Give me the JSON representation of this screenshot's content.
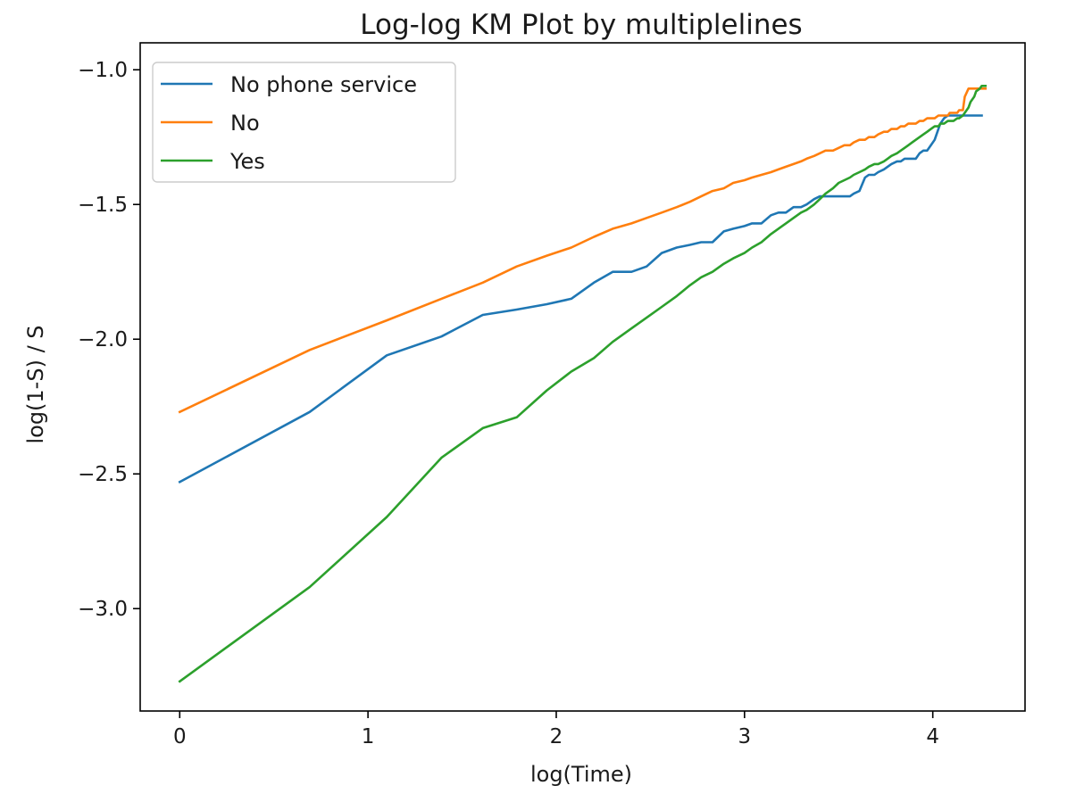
{
  "chart_data": {
    "type": "line",
    "title": "Log-log KM Plot by multiplelines",
    "xlabel": "log(Time)",
    "ylabel": "log(1-S) / S",
    "xlim": [
      -0.21,
      4.49
    ],
    "ylim": [
      -3.38,
      -0.9
    ],
    "x_ticks": [
      0,
      1,
      2,
      3,
      4
    ],
    "x_tick_labels": [
      "0",
      "1",
      "2",
      "3",
      "4"
    ],
    "y_ticks": [
      -1.0,
      -1.5,
      -2.0,
      -2.5,
      -3.0
    ],
    "y_tick_labels": [
      "−1.0",
      "−1.5",
      "−2.0",
      "−2.5",
      "−3.0"
    ],
    "grid": false,
    "legend_position": "top-left",
    "series": [
      {
        "name": "No phone service",
        "color": "#1f77b4",
        "points": [
          [
            0.0,
            -2.53
          ],
          [
            0.69,
            -2.27
          ],
          [
            1.1,
            -2.06
          ],
          [
            1.39,
            -1.99
          ],
          [
            1.61,
            -1.91
          ],
          [
            1.79,
            -1.89
          ],
          [
            1.95,
            -1.87
          ],
          [
            2.08,
            -1.85
          ],
          [
            2.2,
            -1.79
          ],
          [
            2.3,
            -1.75
          ],
          [
            2.4,
            -1.75
          ],
          [
            2.48,
            -1.73
          ],
          [
            2.56,
            -1.68
          ],
          [
            2.64,
            -1.66
          ],
          [
            2.71,
            -1.65
          ],
          [
            2.77,
            -1.64
          ],
          [
            2.83,
            -1.64
          ],
          [
            2.89,
            -1.6
          ],
          [
            2.94,
            -1.59
          ],
          [
            3.0,
            -1.58
          ],
          [
            3.04,
            -1.57
          ],
          [
            3.09,
            -1.57
          ],
          [
            3.14,
            -1.54
          ],
          [
            3.18,
            -1.53
          ],
          [
            3.22,
            -1.53
          ],
          [
            3.26,
            -1.51
          ],
          [
            3.3,
            -1.51
          ],
          [
            3.33,
            -1.5
          ],
          [
            3.37,
            -1.48
          ],
          [
            3.4,
            -1.47
          ],
          [
            3.43,
            -1.47
          ],
          [
            3.47,
            -1.47
          ],
          [
            3.5,
            -1.47
          ],
          [
            3.53,
            -1.47
          ],
          [
            3.56,
            -1.47
          ],
          [
            3.58,
            -1.46
          ],
          [
            3.61,
            -1.45
          ],
          [
            3.64,
            -1.4
          ],
          [
            3.66,
            -1.39
          ],
          [
            3.69,
            -1.39
          ],
          [
            3.71,
            -1.38
          ],
          [
            3.74,
            -1.37
          ],
          [
            3.76,
            -1.36
          ],
          [
            3.78,
            -1.35
          ],
          [
            3.81,
            -1.34
          ],
          [
            3.83,
            -1.34
          ],
          [
            3.85,
            -1.33
          ],
          [
            3.87,
            -1.33
          ],
          [
            3.89,
            -1.33
          ],
          [
            3.91,
            -1.33
          ],
          [
            3.93,
            -1.31
          ],
          [
            3.95,
            -1.3
          ],
          [
            3.97,
            -1.3
          ],
          [
            3.99,
            -1.28
          ],
          [
            4.01,
            -1.26
          ],
          [
            4.03,
            -1.22
          ],
          [
            4.04,
            -1.2
          ],
          [
            4.06,
            -1.18
          ],
          [
            4.08,
            -1.17
          ],
          [
            4.09,
            -1.17
          ],
          [
            4.11,
            -1.17
          ],
          [
            4.13,
            -1.17
          ],
          [
            4.14,
            -1.17
          ],
          [
            4.16,
            -1.17
          ],
          [
            4.17,
            -1.17
          ],
          [
            4.19,
            -1.17
          ],
          [
            4.2,
            -1.17
          ],
          [
            4.22,
            -1.17
          ],
          [
            4.23,
            -1.17
          ],
          [
            4.25,
            -1.17
          ],
          [
            4.26,
            -1.17
          ]
        ]
      },
      {
        "name": "No",
        "color": "#ff7f0e",
        "points": [
          [
            0.0,
            -2.27
          ],
          [
            0.69,
            -2.04
          ],
          [
            1.1,
            -1.93
          ],
          [
            1.39,
            -1.85
          ],
          [
            1.61,
            -1.79
          ],
          [
            1.79,
            -1.73
          ],
          [
            1.95,
            -1.69
          ],
          [
            2.08,
            -1.66
          ],
          [
            2.2,
            -1.62
          ],
          [
            2.3,
            -1.59
          ],
          [
            2.4,
            -1.57
          ],
          [
            2.48,
            -1.55
          ],
          [
            2.56,
            -1.53
          ],
          [
            2.64,
            -1.51
          ],
          [
            2.71,
            -1.49
          ],
          [
            2.77,
            -1.47
          ],
          [
            2.83,
            -1.45
          ],
          [
            2.89,
            -1.44
          ],
          [
            2.94,
            -1.42
          ],
          [
            3.0,
            -1.41
          ],
          [
            3.04,
            -1.4
          ],
          [
            3.09,
            -1.39
          ],
          [
            3.14,
            -1.38
          ],
          [
            3.18,
            -1.37
          ],
          [
            3.22,
            -1.36
          ],
          [
            3.26,
            -1.35
          ],
          [
            3.3,
            -1.34
          ],
          [
            3.33,
            -1.33
          ],
          [
            3.37,
            -1.32
          ],
          [
            3.4,
            -1.31
          ],
          [
            3.43,
            -1.3
          ],
          [
            3.47,
            -1.3
          ],
          [
            3.5,
            -1.29
          ],
          [
            3.53,
            -1.28
          ],
          [
            3.56,
            -1.28
          ],
          [
            3.58,
            -1.27
          ],
          [
            3.61,
            -1.26
          ],
          [
            3.64,
            -1.26
          ],
          [
            3.66,
            -1.25
          ],
          [
            3.69,
            -1.25
          ],
          [
            3.71,
            -1.24
          ],
          [
            3.74,
            -1.23
          ],
          [
            3.76,
            -1.23
          ],
          [
            3.78,
            -1.22
          ],
          [
            3.81,
            -1.22
          ],
          [
            3.83,
            -1.21
          ],
          [
            3.85,
            -1.21
          ],
          [
            3.87,
            -1.2
          ],
          [
            3.89,
            -1.2
          ],
          [
            3.91,
            -1.2
          ],
          [
            3.93,
            -1.19
          ],
          [
            3.95,
            -1.19
          ],
          [
            3.97,
            -1.18
          ],
          [
            3.99,
            -1.18
          ],
          [
            4.01,
            -1.18
          ],
          [
            4.03,
            -1.17
          ],
          [
            4.04,
            -1.17
          ],
          [
            4.06,
            -1.17
          ],
          [
            4.08,
            -1.17
          ],
          [
            4.09,
            -1.16
          ],
          [
            4.11,
            -1.16
          ],
          [
            4.13,
            -1.16
          ],
          [
            4.14,
            -1.15
          ],
          [
            4.16,
            -1.15
          ],
          [
            4.17,
            -1.1
          ],
          [
            4.19,
            -1.07
          ],
          [
            4.2,
            -1.07
          ],
          [
            4.22,
            -1.07
          ],
          [
            4.23,
            -1.07
          ],
          [
            4.25,
            -1.07
          ],
          [
            4.26,
            -1.07
          ],
          [
            4.28,
            -1.07
          ]
        ]
      },
      {
        "name": "Yes",
        "color": "#2ca02c",
        "points": [
          [
            0.0,
            -3.27
          ],
          [
            0.69,
            -2.92
          ],
          [
            1.1,
            -2.66
          ],
          [
            1.39,
            -2.44
          ],
          [
            1.61,
            -2.33
          ],
          [
            1.79,
            -2.29
          ],
          [
            1.95,
            -2.19
          ],
          [
            2.08,
            -2.12
          ],
          [
            2.2,
            -2.07
          ],
          [
            2.3,
            -2.01
          ],
          [
            2.4,
            -1.96
          ],
          [
            2.48,
            -1.92
          ],
          [
            2.56,
            -1.88
          ],
          [
            2.64,
            -1.84
          ],
          [
            2.71,
            -1.8
          ],
          [
            2.77,
            -1.77
          ],
          [
            2.83,
            -1.75
          ],
          [
            2.89,
            -1.72
          ],
          [
            2.94,
            -1.7
          ],
          [
            3.0,
            -1.68
          ],
          [
            3.04,
            -1.66
          ],
          [
            3.09,
            -1.64
          ],
          [
            3.14,
            -1.61
          ],
          [
            3.18,
            -1.59
          ],
          [
            3.22,
            -1.57
          ],
          [
            3.26,
            -1.55
          ],
          [
            3.3,
            -1.53
          ],
          [
            3.33,
            -1.52
          ],
          [
            3.37,
            -1.5
          ],
          [
            3.4,
            -1.48
          ],
          [
            3.43,
            -1.46
          ],
          [
            3.47,
            -1.44
          ],
          [
            3.5,
            -1.42
          ],
          [
            3.53,
            -1.41
          ],
          [
            3.56,
            -1.4
          ],
          [
            3.58,
            -1.39
          ],
          [
            3.61,
            -1.38
          ],
          [
            3.64,
            -1.37
          ],
          [
            3.66,
            -1.36
          ],
          [
            3.69,
            -1.35
          ],
          [
            3.71,
            -1.35
          ],
          [
            3.74,
            -1.34
          ],
          [
            3.76,
            -1.33
          ],
          [
            3.78,
            -1.32
          ],
          [
            3.81,
            -1.31
          ],
          [
            3.83,
            -1.3
          ],
          [
            3.85,
            -1.29
          ],
          [
            3.87,
            -1.28
          ],
          [
            3.89,
            -1.27
          ],
          [
            3.91,
            -1.26
          ],
          [
            3.93,
            -1.25
          ],
          [
            3.95,
            -1.24
          ],
          [
            3.97,
            -1.23
          ],
          [
            3.99,
            -1.22
          ],
          [
            4.01,
            -1.21
          ],
          [
            4.03,
            -1.21
          ],
          [
            4.04,
            -1.2
          ],
          [
            4.06,
            -1.2
          ],
          [
            4.08,
            -1.19
          ],
          [
            4.09,
            -1.19
          ],
          [
            4.11,
            -1.19
          ],
          [
            4.13,
            -1.18
          ],
          [
            4.14,
            -1.18
          ],
          [
            4.16,
            -1.17
          ],
          [
            4.17,
            -1.16
          ],
          [
            4.19,
            -1.14
          ],
          [
            4.2,
            -1.12
          ],
          [
            4.22,
            -1.1
          ],
          [
            4.23,
            -1.08
          ],
          [
            4.25,
            -1.07
          ],
          [
            4.26,
            -1.06
          ],
          [
            4.28,
            -1.06
          ]
        ]
      }
    ]
  }
}
